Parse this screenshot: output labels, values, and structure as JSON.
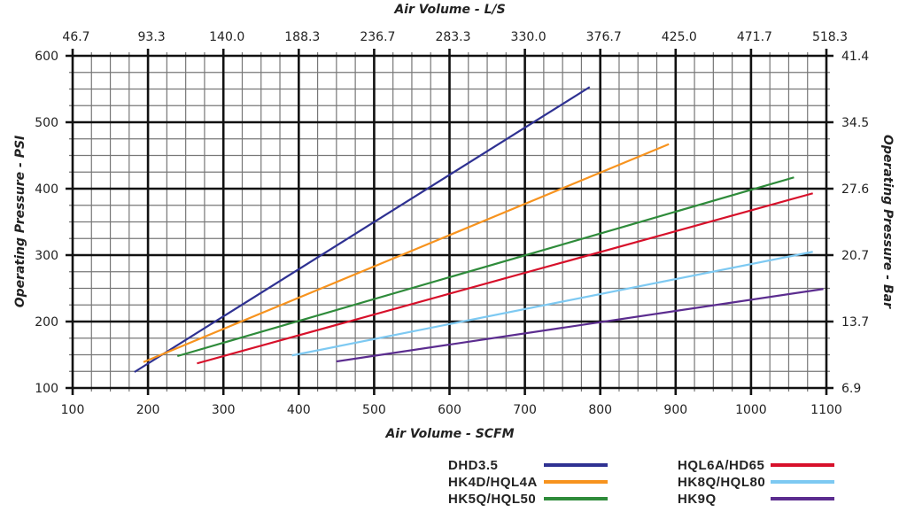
{
  "chart_data": {
    "type": "line",
    "xlabel": "Air Volume - SCFM",
    "ylabel": "Operating Pressure - PSI",
    "x2label": "Air Volume - L/S",
    "y2label": "Operating Pressure - Bar",
    "xlim": [
      100,
      1100
    ],
    "ylim": [
      100,
      600
    ],
    "grid": true,
    "legend_position": "bottom",
    "x_ticks": [
      "100",
      "200",
      "300",
      "400",
      "500",
      "600",
      "700",
      "800",
      "900",
      "1000",
      "1100"
    ],
    "y_ticks": [
      "100",
      "200",
      "300",
      "400",
      "500",
      "600"
    ],
    "x2_ticks": [
      "46.7",
      "93.3",
      "140.0",
      "188.3",
      "236.7",
      "283.3",
      "330.0",
      "376.7",
      "425.0",
      "471.7",
      "518.3"
    ],
    "y2_ticks": [
      "6.9",
      "13.7",
      "20.7",
      "27.6",
      "34.5",
      "41.4"
    ],
    "series": [
      {
        "name": "DHD3.5",
        "color": "#2e3192",
        "points": [
          [
            182,
            124
          ],
          [
            786,
            553
          ]
        ]
      },
      {
        "name": "HK4D/HQL4A",
        "color": "#f7931e",
        "points": [
          [
            194,
            139
          ],
          [
            891,
            467
          ]
        ]
      },
      {
        "name": "HK5Q/HQL50",
        "color": "#2e8b3a",
        "points": [
          [
            239,
            148
          ],
          [
            1057,
            417
          ]
        ]
      },
      {
        "name": "HQL6A/HD65",
        "color": "#d7102a",
        "points": [
          [
            265,
            137
          ],
          [
            1082,
            393
          ]
        ]
      },
      {
        "name": "HK8Q/HQL80",
        "color": "#7dc9f2",
        "points": [
          [
            391,
            149
          ],
          [
            1082,
            305
          ]
        ]
      },
      {
        "name": "HK9Q",
        "color": "#5b2c8f",
        "points": [
          [
            450,
            140
          ],
          [
            1096,
            249
          ]
        ]
      }
    ]
  }
}
